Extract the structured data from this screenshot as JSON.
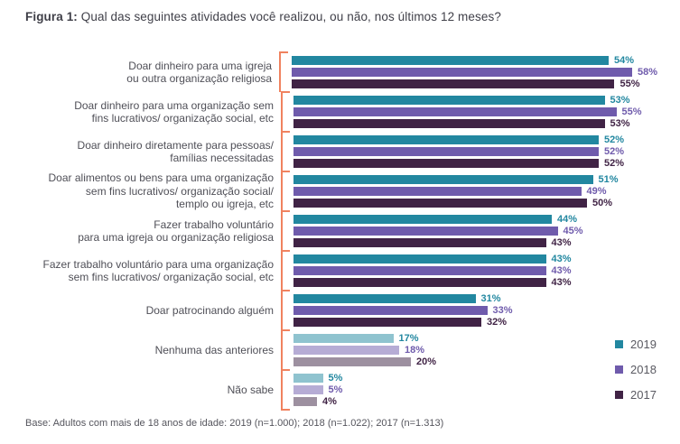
{
  "figure": {
    "title_prefix": "Figura 1:",
    "title_rest": " Qual das seguintes atividades você realizou, ou não, nos últimos 12 meses?",
    "base_note": "Base: Adultos com mais de 18 anos de idade: 2019 (n=1.000); 2018 (n=1.022); 2017 (n=1.313)"
  },
  "colors": {
    "series_2019": "#2287a0",
    "series_2018": "#6f5bac",
    "series_2017": "#402345",
    "muted_2019": "#8fc3cf",
    "muted_2018": "#b6acd5",
    "muted_2017": "#9d90a0",
    "bracket": "#f0825f",
    "category_text": "#4f4f57",
    "title_text": "#3f3f48",
    "note_text": "#55555d"
  },
  "chart_data": {
    "type": "bar",
    "orientation": "horizontal",
    "title": "Figura 1: Qual das seguintes atividades você realizou, ou não, nos últimos 12 meses?",
    "xlabel": "",
    "ylabel": "",
    "xlim": [
      0,
      60
    ],
    "grid": false,
    "value_suffix": "%",
    "legend_position": "right-bottom",
    "categories": [
      [
        "Doar dinheiro para uma igreja",
        "ou outra organização religiosa"
      ],
      [
        "Doar dinheiro para uma organização sem",
        "fins lucrativos/ organização social, etc"
      ],
      [
        "Doar dinheiro diretamente para pessoas/",
        "famílias necessitadas"
      ],
      [
        "Doar alimentos ou bens para uma organização",
        "sem fins lucrativos/ organização social/",
        "templo ou igreja, etc"
      ],
      [
        "Fazer trabalho voluntário",
        "para uma igreja ou organização religiosa"
      ],
      [
        "Fazer trabalho voluntário para uma organização",
        "sem fins lucrativos/ organização social, etc"
      ],
      [
        "Doar patrocinando alguém"
      ],
      [
        "Nenhuma das anteriores"
      ],
      [
        "Não sabe"
      ]
    ],
    "muted_category_indices": [
      7,
      8
    ],
    "series": [
      {
        "name": "2019",
        "color": "#2287a0",
        "muted_color": "#8fc3cf",
        "values": [
          54,
          53,
          52,
          51,
          44,
          43,
          31,
          17,
          5
        ]
      },
      {
        "name": "2018",
        "color": "#6f5bac",
        "muted_color": "#b6acd5",
        "values": [
          58,
          55,
          52,
          49,
          45,
          43,
          33,
          18,
          5
        ]
      },
      {
        "name": "2017",
        "color": "#402345",
        "muted_color": "#9d90a0",
        "values": [
          55,
          53,
          52,
          50,
          43,
          43,
          32,
          20,
          4
        ]
      }
    ]
  }
}
